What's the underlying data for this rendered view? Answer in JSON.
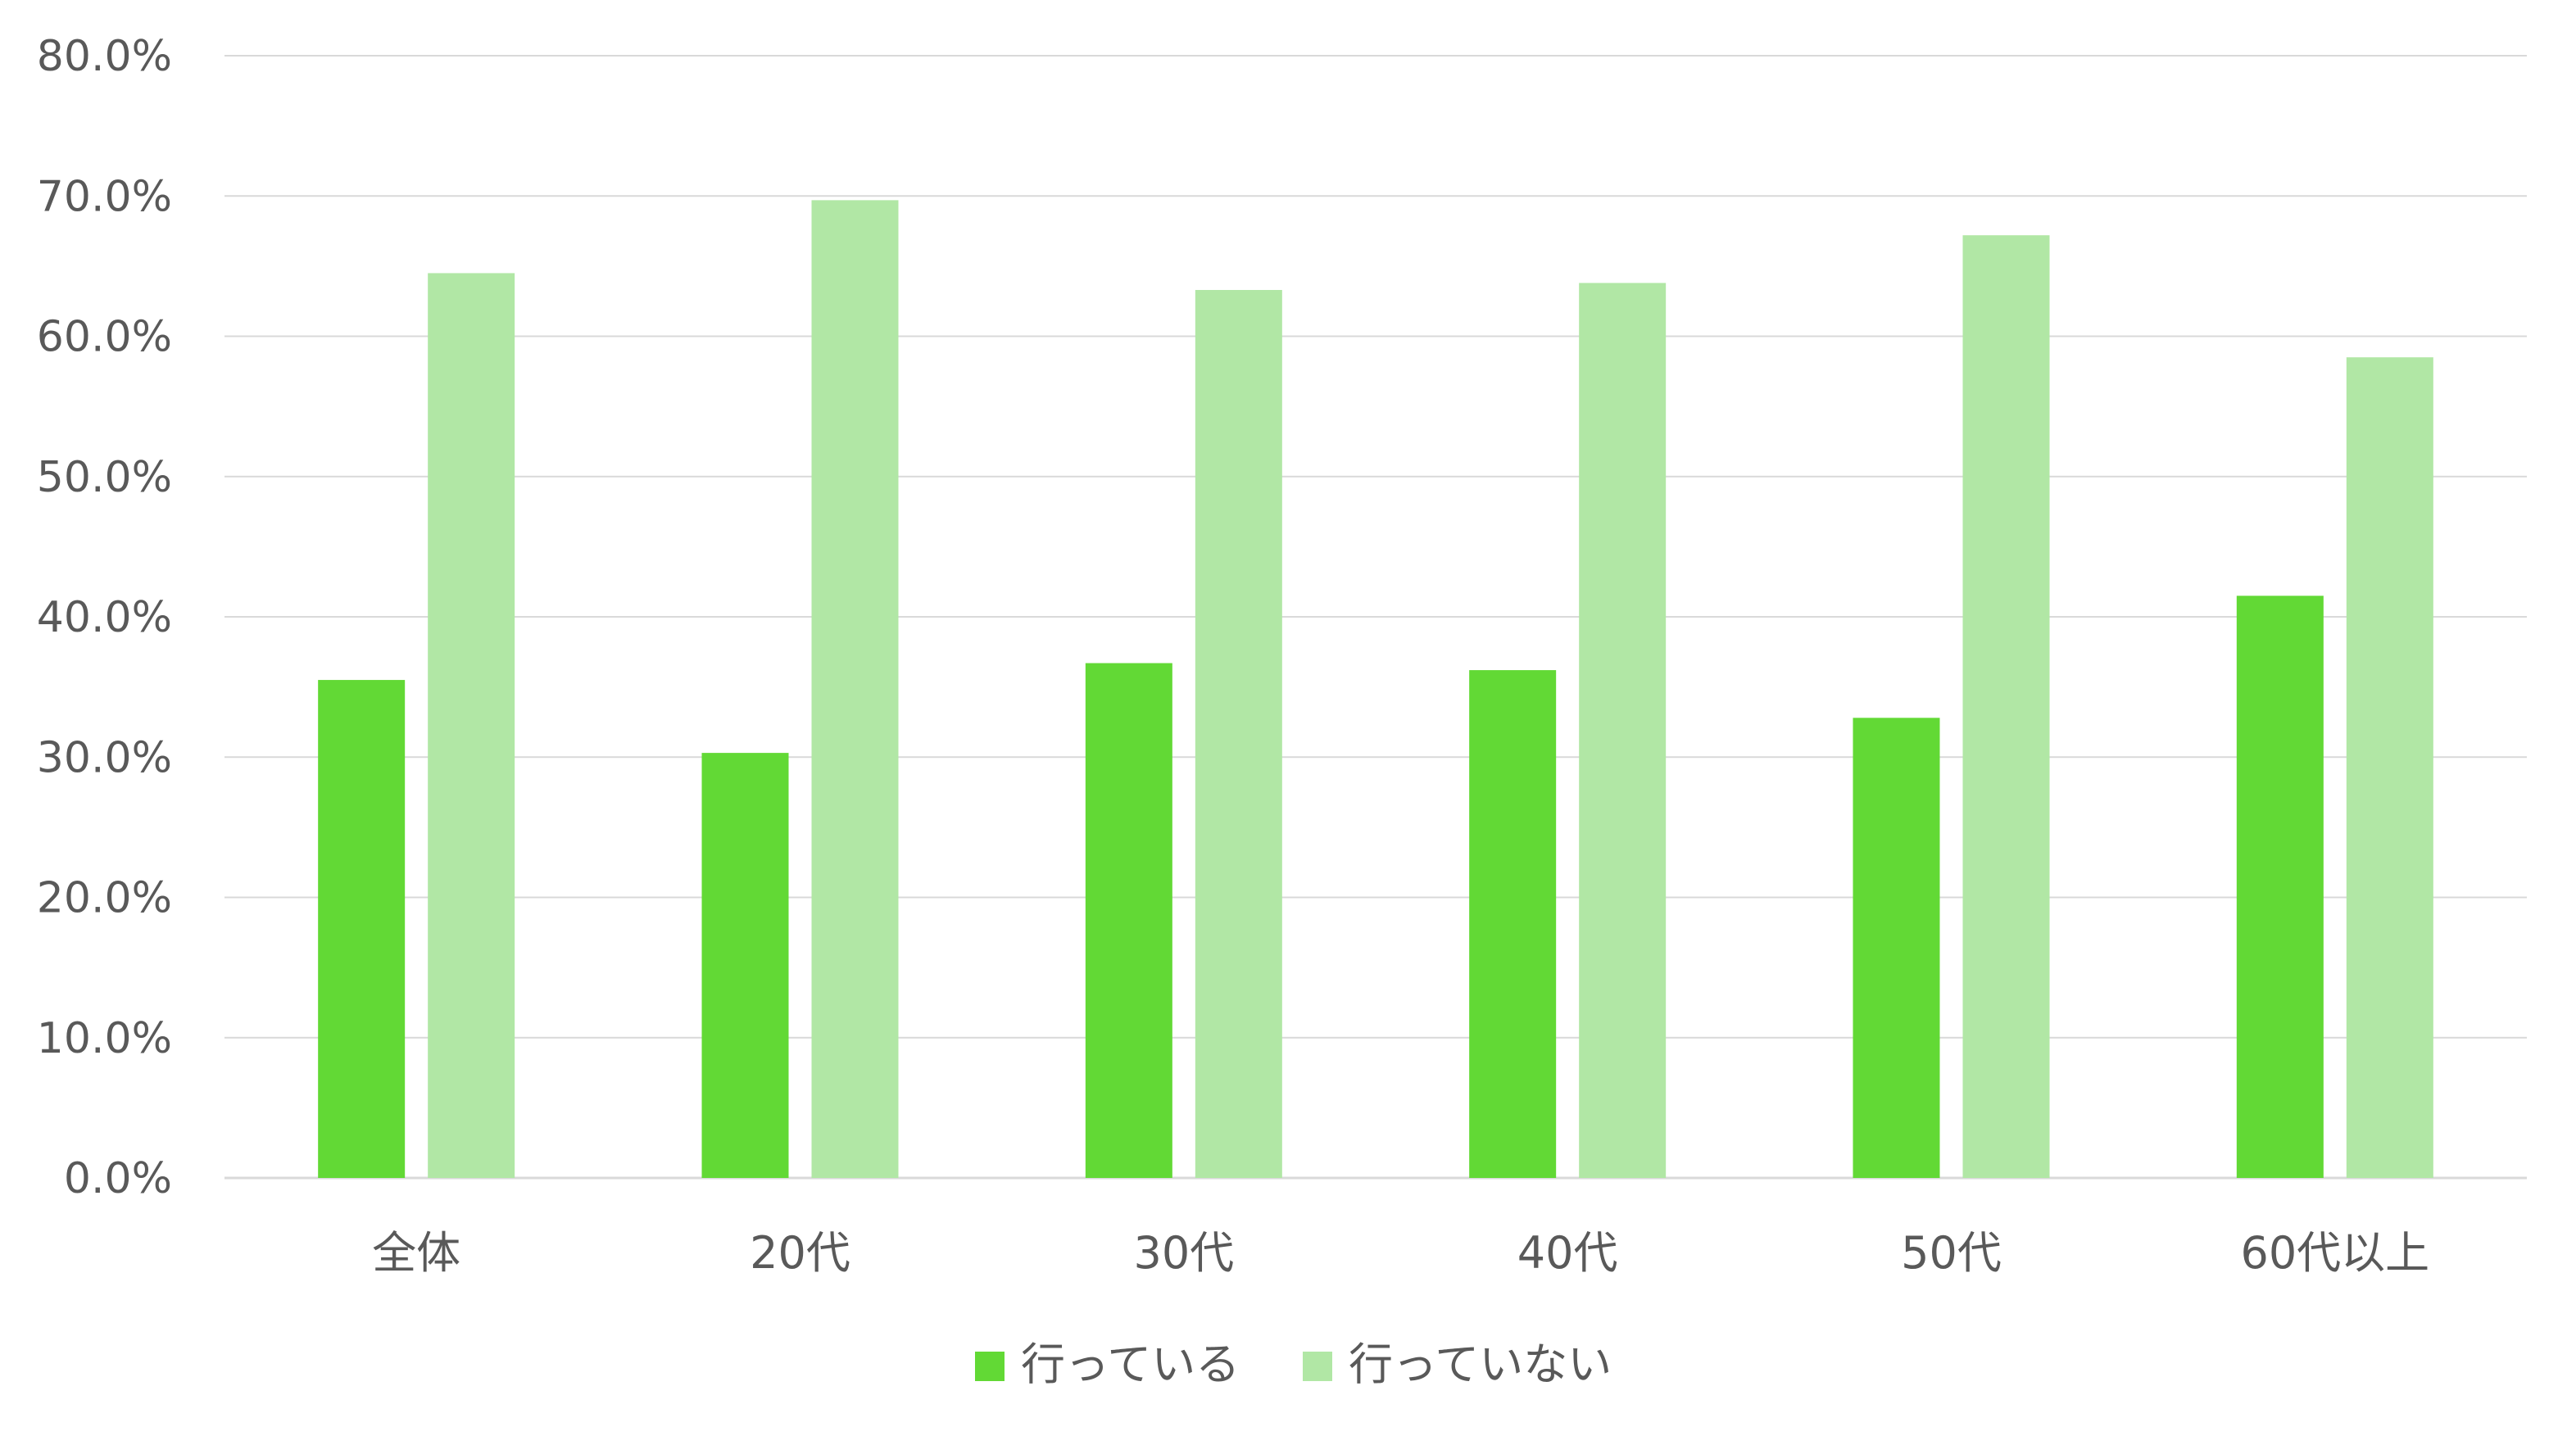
{
  "chart_data": {
    "type": "bar",
    "title": "",
    "xlabel": "",
    "ylabel": "",
    "categories": [
      "全体",
      "20代",
      "30代",
      "40代",
      "50代",
      "60代以上"
    ],
    "series": [
      {
        "name": "行っている",
        "values": [
          35.5,
          30.3,
          36.7,
          36.2,
          32.8,
          41.5
        ],
        "color": "#62d935"
      },
      {
        "name": "行っていない",
        "values": [
          64.5,
          69.7,
          63.3,
          63.8,
          67.2,
          58.5
        ],
        "color": "#b1e7a5"
      }
    ],
    "ylim": [
      0,
      80
    ],
    "yticks": [
      0,
      10,
      20,
      30,
      40,
      50,
      60,
      70,
      80
    ],
    "ytick_labels": [
      "0.0%",
      "10.0%",
      "20.0%",
      "30.0%",
      "40.0%",
      "50.0%",
      "60.0%",
      "70.0%",
      "80.0%"
    ],
    "grid": true,
    "legend_position": "bottom",
    "colors": {
      "gridline": "#d9d9d9",
      "text": "#595959"
    }
  }
}
